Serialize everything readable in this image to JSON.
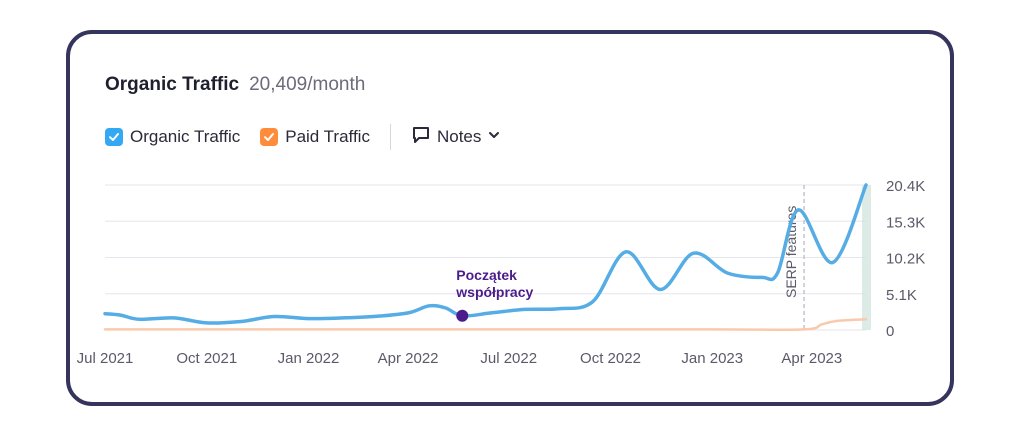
{
  "header": {
    "title": "Organic Traffic",
    "metric": "20,409/month"
  },
  "legend": {
    "items": [
      {
        "label": "Organic Traffic",
        "color": "#33a9f4",
        "checked": true
      },
      {
        "label": "Paid Traffic",
        "color": "#ff8c3a",
        "checked": true
      }
    ],
    "notes_label": "Notes"
  },
  "colors": {
    "organic_line": "#56ade6",
    "paid_line": "#f9c9ad",
    "grid": "#e6e6ee",
    "annotation": "#4b1d8c",
    "axis_text": "#5a5a6a",
    "card_border": "#34345c"
  },
  "chart_data": {
    "type": "line",
    "xlabel": "",
    "ylabel": "",
    "ylim": [
      0,
      20400
    ],
    "y_ticks": [
      "0",
      "5.1K",
      "10.2K",
      "15.3K",
      "20.4K"
    ],
    "y_tick_values": [
      0,
      5100,
      10200,
      15300,
      20400
    ],
    "x_tick_labels": [
      "Jul 2021",
      "Oct 2021",
      "Jan 2022",
      "Apr 2022",
      "Jul 2022",
      "Oct 2022",
      "Jan 2023",
      "Apr 2023"
    ],
    "x_tick_dates": [
      "2021-07-01",
      "2021-10-01",
      "2022-01-01",
      "2022-04-01",
      "2022-07-01",
      "2022-10-01",
      "2023-01-01",
      "2023-04-01"
    ],
    "xlim": [
      "2021-07-01",
      "2023-05-20"
    ],
    "grid": true,
    "legend_position": "top-left",
    "series": [
      {
        "name": "Organic Traffic",
        "points": [
          [
            "2021-07-01",
            2300
          ],
          [
            "2021-07-15",
            2100
          ],
          [
            "2021-08-01",
            1500
          ],
          [
            "2021-09-01",
            1700
          ],
          [
            "2021-10-01",
            1000
          ],
          [
            "2021-11-01",
            1200
          ],
          [
            "2021-12-01",
            1900
          ],
          [
            "2022-01-01",
            1600
          ],
          [
            "2022-02-01",
            1700
          ],
          [
            "2022-03-01",
            1900
          ],
          [
            "2022-04-01",
            2400
          ],
          [
            "2022-04-20",
            3400
          ],
          [
            "2022-05-05",
            3100
          ],
          [
            "2022-05-20",
            2000
          ],
          [
            "2022-06-15",
            2400
          ],
          [
            "2022-07-15",
            2900
          ],
          [
            "2022-08-15",
            3000
          ],
          [
            "2022-09-15",
            4000
          ],
          [
            "2022-10-15",
            11000
          ],
          [
            "2022-11-15",
            5700
          ],
          [
            "2022-12-15",
            10800
          ],
          [
            "2023-01-15",
            8000
          ],
          [
            "2023-02-15",
            7400
          ],
          [
            "2023-03-01",
            8000
          ],
          [
            "2023-03-20",
            16900
          ],
          [
            "2023-04-20",
            9500
          ],
          [
            "2023-05-20",
            20400
          ]
        ]
      },
      {
        "name": "Paid Traffic",
        "points": [
          [
            "2021-07-01",
            80
          ],
          [
            "2022-01-01",
            80
          ],
          [
            "2022-07-01",
            80
          ],
          [
            "2023-01-01",
            80
          ],
          [
            "2023-03-25",
            80
          ],
          [
            "2023-04-10",
            800
          ],
          [
            "2023-04-25",
            1300
          ],
          [
            "2023-05-20",
            1500
          ]
        ]
      }
    ],
    "annotations": [
      {
        "date": "2022-05-20",
        "value": 2000,
        "label_line1": "Początek",
        "label_line2": "współpracy"
      },
      {
        "date": "2023-03-25",
        "label": "SERP features",
        "style": "dashed-vertical"
      }
    ]
  }
}
